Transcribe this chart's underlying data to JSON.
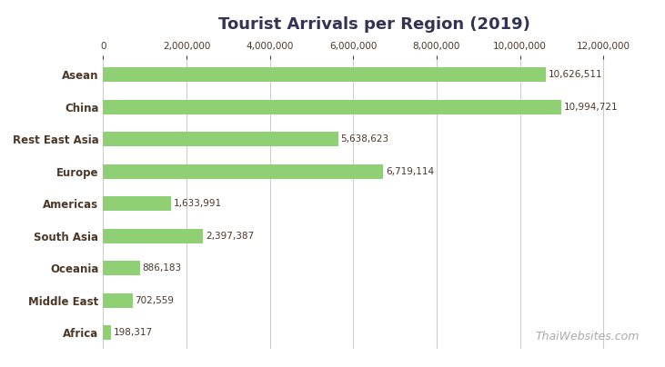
{
  "title": "Tourist Arrivals per Region (2019)",
  "categories": [
    "Africa",
    "Middle East",
    "Oceania",
    "South Asia",
    "Americas",
    "Europe",
    "Rest East Asia",
    "China",
    "Asean"
  ],
  "values": [
    198317,
    702559,
    886183,
    2397387,
    1633991,
    6719114,
    5638623,
    10994721,
    10626511
  ],
  "bar_color": "#90d074",
  "label_color": "#4a3728",
  "title_color": "#333355",
  "background_color": "#ffffff",
  "grid_color": "#cccccc",
  "watermark": "ThaiWebsites.com",
  "watermark_color": "#aaaaaa",
  "xlim": [
    0,
    13000000
  ],
  "xticks": [
    0,
    2000000,
    4000000,
    6000000,
    8000000,
    10000000,
    12000000
  ],
  "bar_height": 0.45,
  "title_fontsize": 13,
  "label_fontsize": 8.5,
  "value_fontsize": 7.5,
  "tick_fontsize": 7.5
}
